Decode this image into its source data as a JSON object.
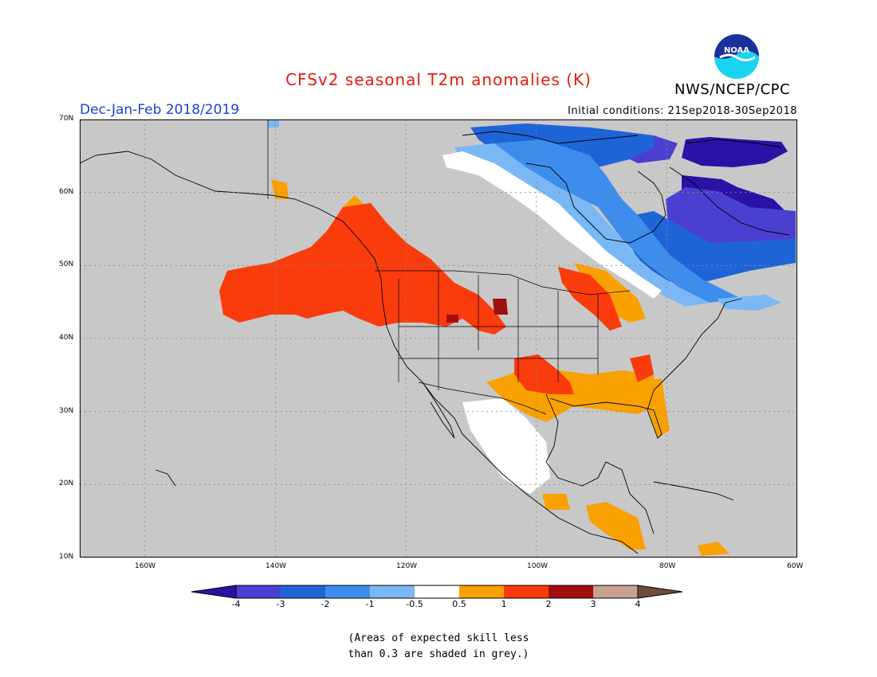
{
  "title": "CFSv2 seasonal T2m anomalies (K)",
  "season": "Dec-Jan-Feb 2018/2019",
  "initial_conditions": "Initial conditions: 21Sep2018-30Sep2018",
  "organization": "NWS/NCEP/CPC",
  "logo_text": "NOAA",
  "map": {
    "lat_labels": [
      "70N",
      "60N",
      "50N",
      "40N",
      "30N",
      "20N",
      "10N"
    ],
    "lon_labels": [
      "160W",
      "140W",
      "120W",
      "100W",
      "80W",
      "60W"
    ],
    "background_color": "#c8c8c8",
    "grid": true
  },
  "legend": {
    "tick_labels": [
      "-4",
      "-3",
      "-2",
      "-1",
      "-0.5",
      "0.5",
      "1",
      "2",
      "3",
      "4"
    ],
    "colors": [
      "#2a12a6",
      "#4a3fd0",
      "#1f64d6",
      "#3e8ded",
      "#7ab7f5",
      "#ffffff",
      "#f9a100",
      "#fa3c0c",
      "#a10e0e",
      "#c9a08f",
      "#6f4a3c"
    ]
  },
  "footnote": {
    "line1": "(Areas of expected skill less",
    "line2": "than 0.3 are shaded in grey.)"
  }
}
